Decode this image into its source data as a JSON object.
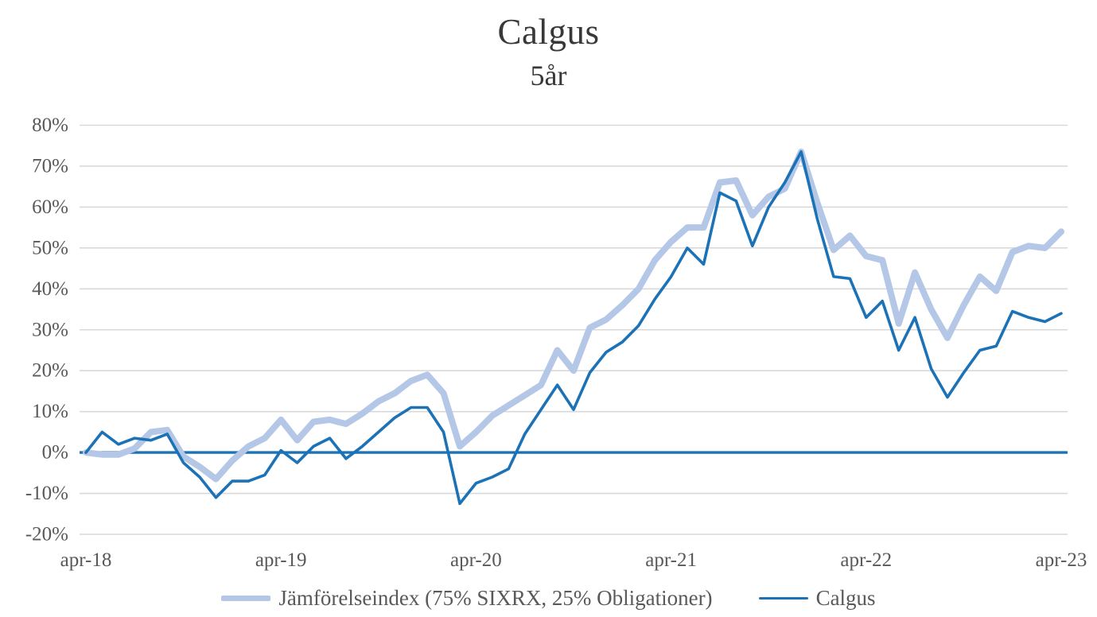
{
  "title": "Calgus",
  "subtitle": "5år",
  "colors": {
    "benchmark": "#B4C7E7",
    "calgus": "#1B72B6",
    "gridline": "#D9D9D9",
    "axis_text": "#595959",
    "title_text": "#383838"
  },
  "legend": [
    {
      "label": "Jämförelseindex (75% SIXRX, 25% Obligationer)",
      "color": "#B4C7E7",
      "thickness": 7
    },
    {
      "label": "Calgus",
      "color": "#1B72B6",
      "thickness": 3.5
    }
  ],
  "chart_data": {
    "type": "line",
    "title": "Calgus",
    "subtitle": "5år",
    "ylim": [
      -20,
      80
    ],
    "y_tick_step": 10,
    "y_tick_labels": [
      "80%",
      "70%",
      "60%",
      "50%",
      "40%",
      "30%",
      "20%",
      "10%",
      "0%",
      "-10%",
      "-20%"
    ],
    "x_tick_labels": [
      "apr-18",
      "apr-19",
      "apr-20",
      "apr-21",
      "apr-22",
      "apr-23"
    ],
    "x_tick_every": 12,
    "grid": true,
    "zero_line": true,
    "legend_position": "bottom",
    "months": [
      "apr-18",
      "maj-18",
      "jun-18",
      "jul-18",
      "aug-18",
      "sep-18",
      "okt-18",
      "nov-18",
      "dec-18",
      "jan-19",
      "feb-19",
      "mar-19",
      "apr-19",
      "maj-19",
      "jun-19",
      "jul-19",
      "aug-19",
      "sep-19",
      "okt-19",
      "nov-19",
      "dec-19",
      "jan-20",
      "feb-20",
      "mar-20",
      "apr-20",
      "maj-20",
      "jun-20",
      "jul-20",
      "aug-20",
      "sep-20",
      "okt-20",
      "nov-20",
      "dec-20",
      "jan-21",
      "feb-21",
      "mar-21",
      "apr-21",
      "maj-21",
      "jun-21",
      "jul-21",
      "aug-21",
      "sep-21",
      "okt-21",
      "nov-21",
      "dec-21",
      "jan-22",
      "feb-22",
      "mar-22",
      "apr-22",
      "maj-22",
      "jun-22",
      "jul-22",
      "aug-22",
      "sep-22",
      "okt-22",
      "nov-22",
      "dec-22",
      "jan-23",
      "feb-23",
      "mar-23",
      "apr-23"
    ],
    "unit": "percent",
    "series": [
      {
        "name": "Jämförelseindex (75% SIXRX, 25% Obligationer)",
        "color": "#B4C7E7",
        "values": [
          0,
          -0.5,
          -0.5,
          1,
          5,
          5.5,
          -1,
          -3.5,
          -6.5,
          -2,
          1.5,
          3.5,
          8,
          3,
          7.5,
          8,
          7,
          9.5,
          12.5,
          14.5,
          17.5,
          19,
          14.5,
          1.5,
          5,
          9,
          11.5,
          14,
          16.5,
          25,
          20,
          30.5,
          32.5,
          36,
          40,
          47,
          51.5,
          55,
          55,
          66,
          66.5,
          58,
          62.5,
          64.5,
          73.5,
          61,
          49.5,
          53,
          48,
          47,
          31.5,
          44,
          35,
          28,
          36,
          43,
          39.5,
          49,
          50.5,
          50,
          54
        ]
      },
      {
        "name": "Calgus",
        "color": "#1B72B6",
        "values": [
          0,
          5,
          2,
          3.5,
          3,
          4.5,
          -2.5,
          -6,
          -11,
          -7,
          -7,
          -5.5,
          0.5,
          -2.5,
          1.5,
          3.5,
          -1.5,
          1.5,
          5,
          8.5,
          11,
          11,
          5,
          -12.5,
          -7.5,
          -6,
          -4,
          4.5,
          10.5,
          16.5,
          10.5,
          19.5,
          24.5,
          27,
          31,
          37.5,
          43,
          50,
          46,
          63.5,
          61.5,
          50.5,
          60,
          66,
          73.5,
          57,
          43,
          42.5,
          33,
          37,
          25,
          33,
          20.5,
          13.5,
          19.5,
          25,
          26,
          34.5,
          33,
          32,
          34
        ]
      }
    ]
  }
}
